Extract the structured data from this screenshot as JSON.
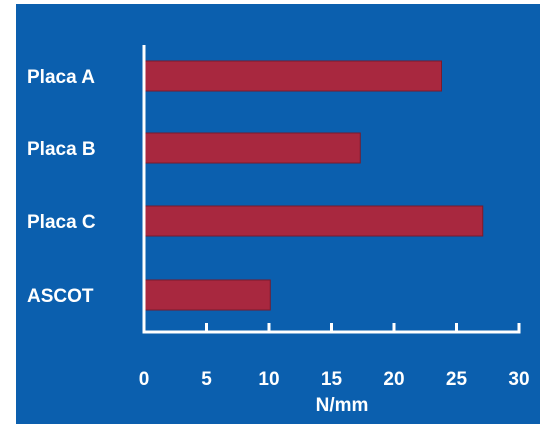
{
  "chart_data": {
    "type": "bar",
    "orientation": "horizontal",
    "categories": [
      "Placa A",
      "Placa B",
      "Placa C",
      "ASCOT"
    ],
    "values": [
      23.8,
      17.3,
      27.1,
      10.1
    ],
    "xlabel": "N/mm",
    "xlim": [
      0,
      30
    ],
    "xticks": [
      "0",
      "5",
      "10",
      "15",
      "20",
      "25",
      "30"
    ],
    "grid": false,
    "colors": {
      "background": "#0b5fae",
      "bar": "#a8283f",
      "axis": "#ffffff",
      "text": "#ffffff"
    }
  }
}
